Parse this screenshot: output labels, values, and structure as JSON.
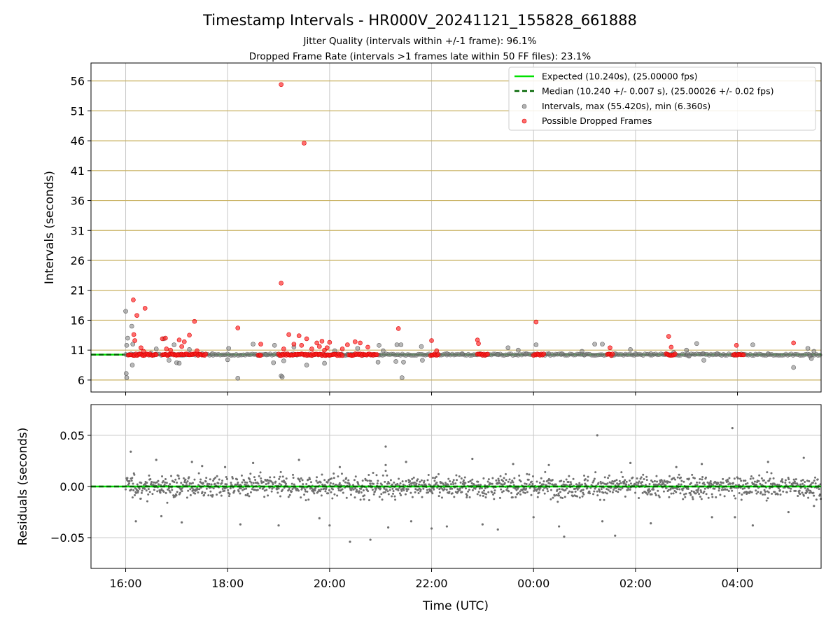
{
  "chart_data": {
    "type": "scatter",
    "title": "Timestamp Intervals - HR000V_20241121_155828_661888",
    "subtitle_lines": [
      "Jitter Quality (intervals within +/-1 frame): 96.1%",
      "Dropped Frame Rate (intervals >1 frames late within 50 FF files): 23.1%"
    ],
    "xlabel": "Time (UTC)",
    "x_ticks": [
      "16:00",
      "18:00",
      "20:00",
      "22:00",
      "00:00",
      "02:00",
      "04:00"
    ],
    "x_tick_hours": [
      16,
      18,
      20,
      22,
      24,
      26,
      28
    ],
    "xlim_hours": [
      15.32,
      29.64
    ],
    "top_panel": {
      "ylabel": "Intervals (seconds)",
      "ylim": [
        4.0,
        59.0
      ],
      "y_ticks": [
        6,
        11,
        16,
        21,
        26,
        31,
        36,
        41,
        46,
        51,
        56
      ],
      "grid": true,
      "expected_interval": 10.24,
      "median_interval": 10.24,
      "legend_position": "top-right",
      "legend": [
        "Expected (10.240s), (25.00000 fps)",
        "Median (10.240 +/- 0.007 s), (25.00026 +/- 0.02 fps)",
        "Intervals, max (55.420s), min (6.360s)",
        "Possible Dropped Frames"
      ],
      "series": [
        {
          "name": "Intervals, max (55.420s), min (6.360s)",
          "points": [
            [
              16.0,
              17.5
            ],
            [
              16.02,
              11.8
            ],
            [
              16.04,
              13.0
            ],
            [
              16.01,
              7.1
            ],
            [
              16.02,
              6.4
            ],
            [
              16.12,
              15.0
            ],
            [
              16.14,
              12.0
            ],
            [
              16.13,
              8.5
            ],
            [
              16.5,
              10.5
            ],
            [
              16.6,
              11.2
            ],
            [
              16.75,
              12.9
            ],
            [
              16.85,
              9.3
            ],
            [
              16.95,
              11.9
            ],
            [
              17.0,
              8.9
            ],
            [
              17.05,
              8.8
            ],
            [
              17.25,
              11.1
            ],
            [
              17.5,
              10.4
            ],
            [
              17.7,
              10.4
            ],
            [
              18.0,
              9.4
            ],
            [
              18.02,
              11.3
            ],
            [
              18.2,
              6.3
            ],
            [
              18.5,
              12.0
            ],
            [
              18.75,
              10.3
            ],
            [
              18.9,
              8.9
            ],
            [
              18.92,
              11.8
            ],
            [
              19.05,
              6.7
            ],
            [
              19.07,
              6.5
            ],
            [
              19.1,
              9.2
            ],
            [
              19.3,
              11.5
            ],
            [
              19.55,
              8.5
            ],
            [
              19.9,
              8.8
            ],
            [
              20.1,
              10.9
            ],
            [
              20.35,
              10.3
            ],
            [
              20.55,
              11.3
            ],
            [
              20.95,
              9.0
            ],
            [
              20.97,
              11.8
            ],
            [
              21.05,
              10.9
            ],
            [
              21.3,
              9.1
            ],
            [
              21.32,
              11.9
            ],
            [
              21.4,
              11.9
            ],
            [
              21.42,
              6.4
            ],
            [
              21.45,
              9.0
            ],
            [
              21.8,
              11.6
            ],
            [
              21.82,
              9.3
            ],
            [
              22.3,
              10.4
            ],
            [
              22.6,
              10.4
            ],
            [
              22.95,
              10.4
            ],
            [
              23.3,
              10.3
            ],
            [
              23.5,
              11.4
            ],
            [
              23.7,
              11.0
            ],
            [
              23.85,
              10.4
            ],
            [
              24.05,
              11.9
            ],
            [
              24.3,
              10.4
            ],
            [
              24.55,
              10.4
            ],
            [
              24.95,
              10.8
            ],
            [
              25.0,
              10.2
            ],
            [
              25.2,
              12.0
            ],
            [
              25.35,
              12.0
            ],
            [
              25.6,
              10.4
            ],
            [
              25.9,
              11.1
            ],
            [
              26.0,
              10.4
            ],
            [
              26.3,
              10.4
            ],
            [
              26.75,
              10.6
            ],
            [
              27.0,
              11.0
            ],
            [
              27.02,
              10.4
            ],
            [
              27.05,
              10.0
            ],
            [
              27.2,
              12.1
            ],
            [
              27.32,
              10.4
            ],
            [
              27.34,
              9.3
            ],
            [
              27.6,
              10.4
            ],
            [
              28.0,
              10.3
            ],
            [
              28.3,
              11.9
            ],
            [
              28.6,
              10.4
            ],
            [
              29.1,
              8.1
            ],
            [
              29.38,
              11.3
            ],
            [
              29.42,
              10.0
            ],
            [
              29.45,
              9.6
            ],
            [
              29.5,
              10.8
            ]
          ]
        },
        {
          "name": "Possible Dropped Frames",
          "cluster_value": 10.24,
          "cluster_ranges": [
            [
              16.05,
              16.62
            ],
            [
              16.72,
              17.58
            ],
            [
              18.6,
              18.66
            ],
            [
              19.0,
              20.25
            ],
            [
              20.38,
              20.95
            ],
            [
              21.98,
              22.14
            ],
            [
              22.9,
              23.1
            ],
            [
              24.0,
              24.22
            ],
            [
              25.45,
              25.55
            ],
            [
              26.6,
              26.78
            ],
            [
              27.92,
              28.12
            ]
          ],
          "points": [
            [
              16.15,
              19.4
            ],
            [
              16.22,
              16.8
            ],
            [
              16.38,
              18.0
            ],
            [
              16.16,
              13.6
            ],
            [
              16.18,
              12.6
            ],
            [
              16.3,
              11.4
            ],
            [
              16.35,
              10.8
            ],
            [
              16.72,
              12.9
            ],
            [
              16.78,
              13.0
            ],
            [
              16.8,
              11.2
            ],
            [
              16.88,
              11.0
            ],
            [
              17.05,
              12.7
            ],
            [
              17.1,
              11.6
            ],
            [
              17.15,
              12.4
            ],
            [
              17.25,
              13.5
            ],
            [
              17.35,
              15.8
            ],
            [
              17.4,
              10.9
            ],
            [
              18.2,
              14.7
            ],
            [
              18.65,
              12.0
            ],
            [
              19.05,
              55.4
            ],
            [
              19.05,
              22.2
            ],
            [
              19.1,
              11.2
            ],
            [
              19.2,
              13.6
            ],
            [
              19.3,
              12.0
            ],
            [
              19.4,
              13.4
            ],
            [
              19.45,
              11.8
            ],
            [
              19.5,
              45.6
            ],
            [
              19.55,
              12.9
            ],
            [
              19.65,
              11.2
            ],
            [
              19.75,
              12.2
            ],
            [
              19.8,
              11.6
            ],
            [
              19.85,
              12.5
            ],
            [
              19.9,
              11.0
            ],
            [
              19.95,
              11.4
            ],
            [
              20.0,
              12.3
            ],
            [
              20.25,
              11.2
            ],
            [
              20.35,
              11.9
            ],
            [
              20.5,
              12.4
            ],
            [
              20.6,
              12.2
            ],
            [
              20.75,
              11.5
            ],
            [
              21.35,
              14.6
            ],
            [
              22.0,
              12.6
            ],
            [
              22.1,
              10.9
            ],
            [
              22.9,
              12.7
            ],
            [
              22.92,
              12.1
            ],
            [
              24.05,
              15.7
            ],
            [
              25.5,
              11.4
            ],
            [
              26.65,
              13.3
            ],
            [
              26.7,
              11.5
            ],
            [
              27.98,
              11.8
            ],
            [
              29.1,
              12.2
            ]
          ]
        }
      ]
    },
    "bottom_panel": {
      "ylabel": "Residuals (seconds)",
      "ylim": [
        -0.08,
        0.08
      ],
      "y_ticks": [
        0.05,
        0.0,
        -0.05
      ],
      "y_tick_labels": [
        "0.05",
        "0.00",
        "−0.05"
      ],
      "grid": true,
      "series_name": "Residuals",
      "typical_spread": 0.01,
      "outliers": [
        [
          16.1,
          0.034
        ],
        [
          16.2,
          -0.034
        ],
        [
          16.6,
          0.026
        ],
        [
          16.7,
          -0.029
        ],
        [
          17.3,
          0.024
        ],
        [
          17.1,
          -0.035
        ],
        [
          17.5,
          0.02
        ],
        [
          17.95,
          0.019
        ],
        [
          18.25,
          -0.037
        ],
        [
          18.5,
          0.023
        ],
        [
          19.0,
          -0.038
        ],
        [
          19.4,
          0.026
        ],
        [
          19.8,
          -0.031
        ],
        [
          20.0,
          -0.038
        ],
        [
          20.2,
          0.019
        ],
        [
          20.4,
          -0.054
        ],
        [
          20.8,
          -0.052
        ],
        [
          21.1,
          0.021
        ],
        [
          21.15,
          -0.04
        ],
        [
          21.1,
          0.039
        ],
        [
          21.5,
          0.024
        ],
        [
          21.6,
          -0.034
        ],
        [
          22.0,
          -0.041
        ],
        [
          22.3,
          -0.039
        ],
        [
          22.8,
          0.027
        ],
        [
          23.0,
          -0.037
        ],
        [
          23.3,
          -0.042
        ],
        [
          23.6,
          0.022
        ],
        [
          24.0,
          -0.03
        ],
        [
          24.3,
          0.021
        ],
        [
          24.5,
          -0.039
        ],
        [
          24.6,
          -0.049
        ],
        [
          25.25,
          0.05
        ],
        [
          25.35,
          -0.034
        ],
        [
          25.6,
          -0.048
        ],
        [
          25.9,
          0.023
        ],
        [
          26.3,
          -0.036
        ],
        [
          26.8,
          0.019
        ],
        [
          27.3,
          0.022
        ],
        [
          27.5,
          -0.03
        ],
        [
          27.9,
          0.057
        ],
        [
          27.95,
          -0.03
        ],
        [
          28.3,
          -0.038
        ],
        [
          28.6,
          0.024
        ],
        [
          29.0,
          -0.025
        ],
        [
          29.3,
          0.028
        ],
        [
          29.5,
          -0.019
        ]
      ]
    }
  }
}
